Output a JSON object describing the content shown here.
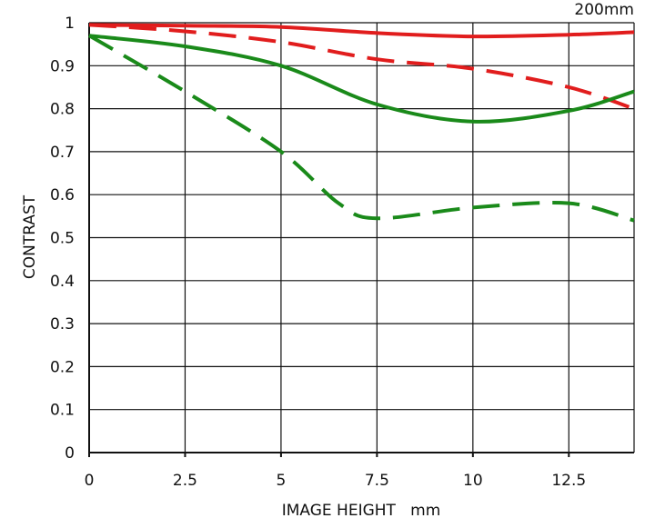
{
  "focal_length_label": "200mm",
  "colors": {
    "sagittal": "#e11d1d",
    "meridional": "#1a8a1a",
    "grid": "#111111"
  },
  "chart_data": {
    "type": "line",
    "title": "",
    "xlabel": "IMAGE HEIGHT   mm",
    "ylabel": "CONTRAST",
    "xlim": [
      0,
      14.2
    ],
    "ylim": [
      0,
      1
    ],
    "x_ticks": [
      0,
      2.5,
      5,
      7.5,
      10,
      12.5
    ],
    "x_tick_labels": [
      "0",
      "2.5",
      "5",
      "7.5",
      "10",
      "12.5"
    ],
    "y_ticks": [
      0,
      0.1,
      0.2,
      0.3,
      0.4,
      0.5,
      0.6,
      0.7,
      0.8,
      0.9,
      1
    ],
    "y_tick_labels": [
      "0",
      "0.1",
      "0.2",
      "0.3",
      "0.4",
      "0.5",
      "0.6",
      "0.7",
      "0.8",
      "0.9",
      "1"
    ],
    "grid": true,
    "series": [
      {
        "color": "#e11d1d",
        "dash": "solid",
        "x": [
          0,
          2.5,
          5,
          7.5,
          10,
          12.5,
          14.2
        ],
        "y": [
          0.995,
          0.993,
          0.99,
          0.976,
          0.968,
          0.972,
          0.978
        ]
      },
      {
        "color": "#e11d1d",
        "dash": "dashed",
        "x": [
          0,
          2.5,
          5,
          7.5,
          10,
          12.5,
          14.2
        ],
        "y": [
          0.995,
          0.98,
          0.955,
          0.915,
          0.893,
          0.85,
          0.8
        ]
      },
      {
        "color": "#1a8a1a",
        "dash": "solid",
        "x": [
          0,
          2.5,
          5,
          7.5,
          10,
          12.5,
          14.2
        ],
        "y": [
          0.97,
          0.945,
          0.9,
          0.81,
          0.77,
          0.795,
          0.84
        ]
      },
      {
        "color": "#1a8a1a",
        "dash": "dashed",
        "x": [
          0,
          2.5,
          5,
          6.5,
          7.5,
          10,
          12.5,
          14.2
        ],
        "y": [
          0.97,
          0.84,
          0.7,
          0.58,
          0.545,
          0.57,
          0.58,
          0.54
        ]
      }
    ]
  }
}
